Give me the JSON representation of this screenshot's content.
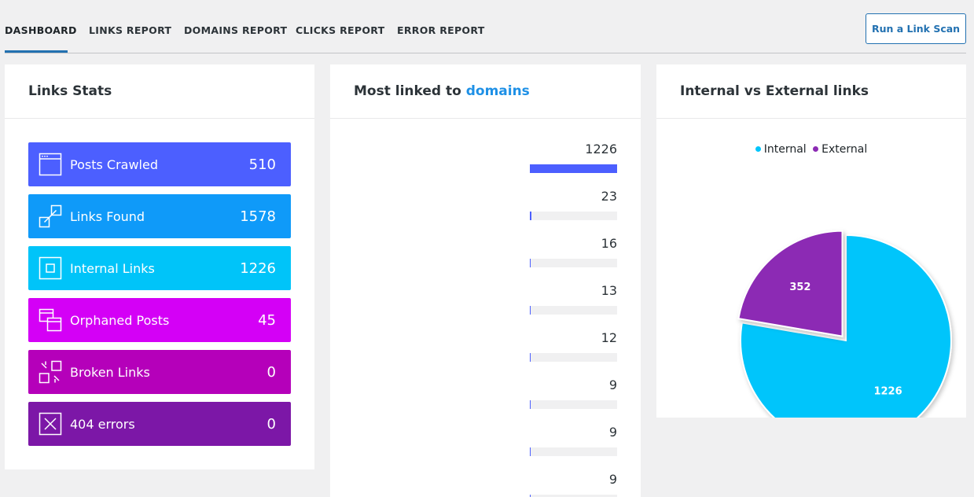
{
  "nav": {
    "tabs": [
      {
        "label": "DASHBOARD",
        "active": true
      },
      {
        "label": "LINKS REPORT",
        "active": false
      },
      {
        "label": "DOMAINS REPORT",
        "active": false
      },
      {
        "label": "CLICKS REPORT",
        "active": false
      },
      {
        "label": "ERROR REPORT",
        "active": false
      }
    ],
    "scan_button": "Run a Link Scan"
  },
  "links_stats": {
    "title": "Links Stats",
    "items": [
      {
        "label": "Posts Crawled",
        "value": "510",
        "icon": "browser-window-icon",
        "color": "#4c5fff"
      },
      {
        "label": "Links Found",
        "value": "1578",
        "icon": "link-icon",
        "color": "#0f9af9"
      },
      {
        "label": "Internal Links",
        "value": "1226",
        "icon": "internal-link-icon",
        "color": "#00c4f9"
      },
      {
        "label": "Orphaned Posts",
        "value": "45",
        "icon": "orphaned-windows-icon",
        "color": "#d400f6"
      },
      {
        "label": "Broken Links",
        "value": "0",
        "icon": "broken-link-icon",
        "color": "#b500ba"
      },
      {
        "label": "404 errors",
        "value": "0",
        "icon": "close-box-icon",
        "color": "#7c17a7"
      }
    ]
  },
  "domains": {
    "title_prefix": "Most linked to",
    "title_accent": "domains",
    "max": 1226,
    "items": [
      {
        "count": "1226",
        "value": 1226
      },
      {
        "count": "23",
        "value": 23
      },
      {
        "count": "16",
        "value": 16
      },
      {
        "count": "13",
        "value": 13
      },
      {
        "count": "12",
        "value": 12
      },
      {
        "count": "9",
        "value": 9
      },
      {
        "count": "9",
        "value": 9
      },
      {
        "count": "9",
        "value": 9
      }
    ]
  },
  "chart_data": {
    "type": "pie",
    "title": "Internal vs External links",
    "legend_position": "top",
    "slices": [
      {
        "name": "Internal",
        "value": 1226,
        "label": "1226",
        "color": "#00c5fb"
      },
      {
        "name": "External",
        "value": 352,
        "label": "352",
        "color": "#8c2bb4"
      }
    ]
  }
}
